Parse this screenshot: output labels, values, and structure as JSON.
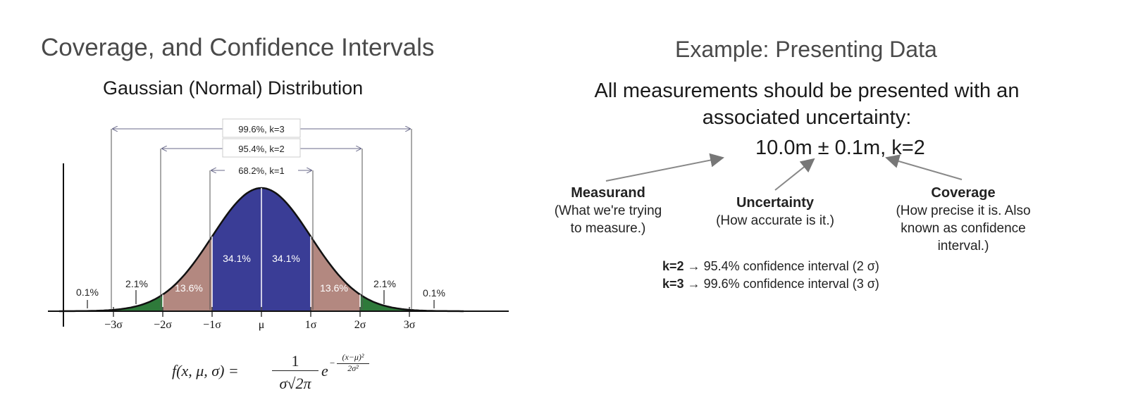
{
  "left": {
    "title": "Coverage, and Confidence Intervals",
    "subtitle": "Gaussian (Normal) Distribution",
    "intervals": [
      {
        "label": "99.6%, k=3",
        "k": 3
      },
      {
        "label": "95.4%, k=2",
        "k": 2
      },
      {
        "label": "68.2%, k=1",
        "k": 1
      }
    ],
    "regions": [
      {
        "label": "34.1%",
        "from": -1,
        "to": 0,
        "color": "#3a3d96"
      },
      {
        "label": "34.1%",
        "from": 0,
        "to": 1,
        "color": "#3a3d96"
      },
      {
        "label": "13.6%",
        "from": -2,
        "to": -1,
        "color": "#b38880"
      },
      {
        "label": "13.6%",
        "from": 1,
        "to": 2,
        "color": "#b38880"
      },
      {
        "label": "2.1%",
        "from": -3,
        "to": -2,
        "color": "#2e7a3a"
      },
      {
        "label": "2.1%",
        "from": 2,
        "to": 3,
        "color": "#2e7a3a"
      },
      {
        "label": "0.1%",
        "from": -4,
        "to": -3,
        "color": "#2e7a3a"
      },
      {
        "label": "0.1%",
        "from": 3,
        "to": 4,
        "color": "#2e7a3a"
      }
    ],
    "axis_ticks": [
      "−3σ",
      "−2σ",
      "−1σ",
      "μ",
      "1σ",
      "2σ",
      "3σ"
    ],
    "formula": {
      "lhs": "f(x, μ, σ) =",
      "num": "1",
      "den": "σ√2π",
      "base": "e",
      "exp_num": "(x−μ)²",
      "exp_den": "2σ²",
      "exp_sign": "−"
    }
  },
  "right": {
    "title": "Example: Presenting Data",
    "statement": "All measurements should be presented with an associated uncertainty:",
    "example": "10.0m ± 0.1m, k=2",
    "measurand": {
      "title": "Measurand",
      "lines": [
        "(What we're trying",
        "to measure.)"
      ]
    },
    "uncertainty": {
      "title": "Uncertainty",
      "lines": [
        "(How accurate is it.)"
      ]
    },
    "coverage": {
      "title": "Coverage",
      "lines": [
        "(How precise it is. Also",
        "known as confidence",
        "interval.)"
      ]
    },
    "k2": {
      "key": "k=2",
      "text": "→ 95.4% confidence interval (2 σ)"
    },
    "k3": {
      "key": "k=3",
      "text": "→ 99.6% confidence interval (3 σ)"
    }
  }
}
